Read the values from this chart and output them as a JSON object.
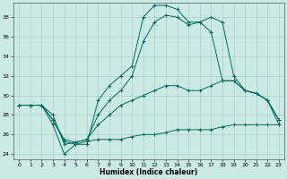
{
  "xlabel": "Humidex (Indice chaleur)",
  "background_color": "#cceae4",
  "grid_color": "#aacfc8",
  "line_color": "#006b5e",
  "xlim": [
    -0.5,
    23.5
  ],
  "ylim": [
    23.5,
    39.5
  ],
  "yticks": [
    24,
    26,
    28,
    30,
    32,
    34,
    36,
    38
  ],
  "xticks": [
    0,
    1,
    2,
    3,
    4,
    5,
    6,
    7,
    8,
    9,
    10,
    11,
    12,
    13,
    14,
    15,
    16,
    17,
    18,
    19,
    20,
    21,
    22,
    23
  ],
  "series": [
    [
      29,
      29,
      29,
      27,
      24,
      25,
      25,
      29.5,
      31,
      32,
      33,
      38,
      39.2,
      39.2,
      38.8,
      37.5,
      37.5,
      38,
      37.5,
      32,
      30.5,
      30.2,
      29.5,
      27
    ],
    [
      29,
      29,
      29,
      28,
      25,
      25.2,
      25.5,
      28,
      29.5,
      30.5,
      32,
      35.5,
      37.5,
      38.2,
      38,
      37.2,
      37.5,
      36.5,
      31.5,
      31.5,
      30.5,
      30.2,
      29.5,
      27.5
    ],
    [
      29,
      29,
      29,
      27.5,
      25.5,
      25.2,
      25.5,
      27,
      28,
      29,
      29.5,
      30,
      30.5,
      31,
      31,
      30.5,
      30.5,
      31,
      31.5,
      31.5,
      30.5,
      30.2,
      29.5,
      27.5
    ],
    [
      29,
      29,
      29,
      27.5,
      25.3,
      25,
      25.3,
      25.5,
      25.5,
      25.5,
      25.8,
      26,
      26,
      26.2,
      26.5,
      26.5,
      26.5,
      26.5,
      26.8,
      27,
      27,
      27,
      27,
      27
    ]
  ]
}
